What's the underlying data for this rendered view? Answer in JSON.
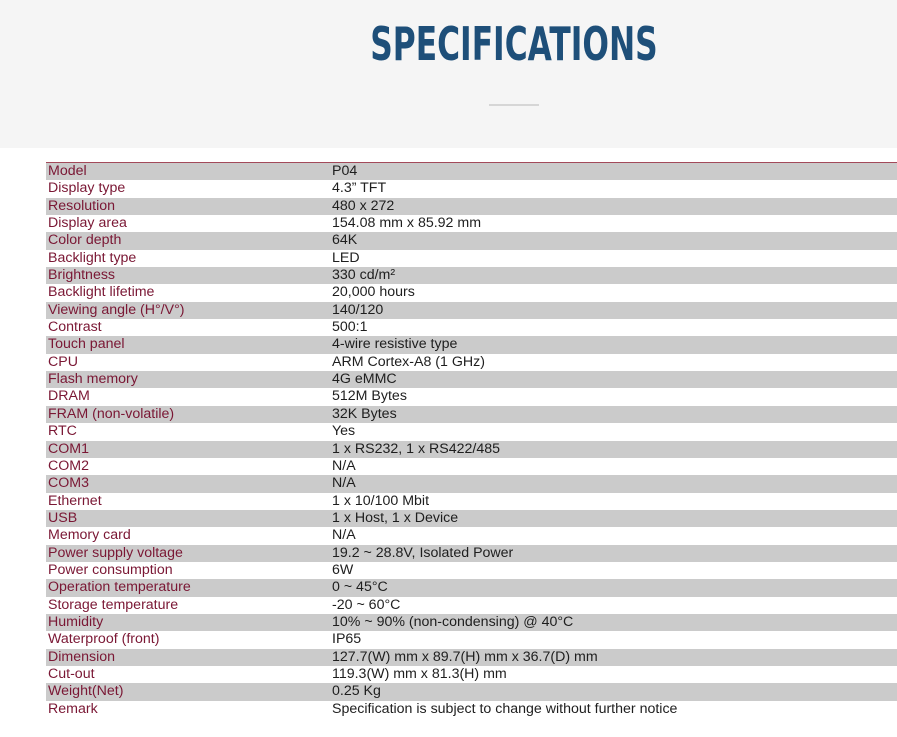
{
  "page": {
    "title": "SPECIFICATIONS"
  },
  "specs": [
    {
      "label": "Model",
      "value": "P04"
    },
    {
      "label": "Display type",
      "value": "4.3” TFT"
    },
    {
      "label": "Resolution",
      "value": "480 x 272"
    },
    {
      "label": "Display area",
      "value": "154.08 mm x 85.92 mm"
    },
    {
      "label": "Color depth",
      "value": "64K"
    },
    {
      "label": "Backlight type",
      "value": "LED"
    },
    {
      "label": "Brightness",
      "value": "330 cd/m²"
    },
    {
      "label": "Backlight lifetime",
      "value": "20,000 hours"
    },
    {
      "label": "Viewing angle (H°/V°)",
      "value": "140/120"
    },
    {
      "label": "Contrast",
      "value": "500:1"
    },
    {
      "label": "Touch panel",
      "value": "4-wire resistive type"
    },
    {
      "label": "CPU",
      "value": "ARM Cortex-A8 (1 GHz)"
    },
    {
      "label": "Flash memory",
      "value": "4G eMMC"
    },
    {
      "label": "DRAM",
      "value": "512M Bytes"
    },
    {
      "label": "FRAM (non-volatile)",
      "value": "32K Bytes"
    },
    {
      "label": "RTC",
      "value": "Yes"
    },
    {
      "label": "COM1",
      "value": "1 x RS232, 1 x RS422/485"
    },
    {
      "label": "COM2",
      "value": "N/A"
    },
    {
      "label": "COM3",
      "value": "N/A"
    },
    {
      "label": "Ethernet",
      "value": "1 x 10/100 Mbit"
    },
    {
      "label": "USB",
      "value": "1 x Host, 1 x Device"
    },
    {
      "label": "Memory card",
      "value": "N/A"
    },
    {
      "label": "Power supply voltage",
      "value": "19.2 ~ 28.8V, Isolated Power"
    },
    {
      "label": "Power consumption",
      "value": "6W"
    },
    {
      "label": "Operation temperature",
      "value": "0 ~ 45°C"
    },
    {
      "label": "Storage temperature",
      "value": "-20 ~ 60°C"
    },
    {
      "label": "Humidity",
      "value": "10% ~ 90% (non-condensing) @ 40°C"
    },
    {
      "label": "Waterproof (front)",
      "value": "IP65"
    },
    {
      "label": "Dimension",
      "value": "127.7(W) mm x 89.7(H) mm x 36.7(D) mm"
    },
    {
      "label": "Cut-out",
      "value": "119.3(W) mm x 81.3(H) mm"
    },
    {
      "label": "Weight(Net)",
      "value": "0.25 Kg"
    },
    {
      "label": "Remark",
      "value": "Specification is subject to change without further notice"
    }
  ]
}
